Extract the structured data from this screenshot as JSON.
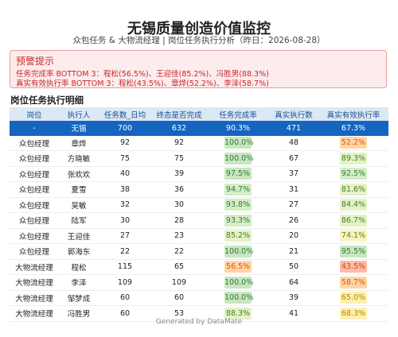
{
  "header": {
    "title": "无锡质量创造价值监控",
    "subtitle": "众包任务 & 大物流经理 | 岗位任务执行分析（昨日：2026-08-28）"
  },
  "alert": {
    "title": "预警提示",
    "lines": [
      "任务完成率 BOTTOM 3：程松(56.5%)、王迎佳(85.2%)、冯胜男(88.3%)",
      "真实有效执行率 BOTTOM 3：程松(43.5%)、章烨(52.2%)、李泽(58.7%)"
    ]
  },
  "table": {
    "title": "岗位任务执行明细",
    "headers": [
      "岗位",
      "执行人",
      "任务数_日均",
      "终态是否完成",
      "任务完成率",
      "真实执行数",
      "真实有效执行率"
    ],
    "total": [
      "-",
      "无锡",
      "700",
      "632",
      "90.3%",
      "471",
      "67.3%"
    ],
    "rows": [
      [
        "众包经理",
        "章烨",
        "92",
        "92",
        "100.0%",
        "48",
        "52.2%"
      ],
      [
        "众包经理",
        "方晓敏",
        "75",
        "75",
        "100.0%",
        "67",
        "89.3%"
      ],
      [
        "众包经理",
        "张欢欢",
        "40",
        "39",
        "97.5%",
        "37",
        "92.5%"
      ],
      [
        "众包经理",
        "夏雪",
        "38",
        "36",
        "94.7%",
        "31",
        "81.6%"
      ],
      [
        "众包经理",
        "吴敏",
        "32",
        "30",
        "93.8%",
        "27",
        "84.4%"
      ],
      [
        "众包经理",
        "陆军",
        "30",
        "28",
        "93.3%",
        "26",
        "86.7%"
      ],
      [
        "众包经理",
        "王迎佳",
        "27",
        "23",
        "85.2%",
        "20",
        "74.1%"
      ],
      [
        "众包经理",
        "郭海东",
        "22",
        "22",
        "100.0%",
        "21",
        "95.5%"
      ],
      [
        "大物流经理",
        "程松",
        "115",
        "65",
        "56.5%",
        "50",
        "43.5%"
      ],
      [
        "大物流经理",
        "李泽",
        "109",
        "109",
        "100.0%",
        "64",
        "58.7%"
      ],
      [
        "大物流经理",
        "邹梦成",
        "60",
        "60",
        "100.0%",
        "39",
        "65.0%"
      ],
      [
        "大物流经理",
        "冯胜男",
        "60",
        "53",
        "88.3%",
        "41",
        "68.3%"
      ]
    ]
  },
  "footer": "Generated by DataMate"
}
